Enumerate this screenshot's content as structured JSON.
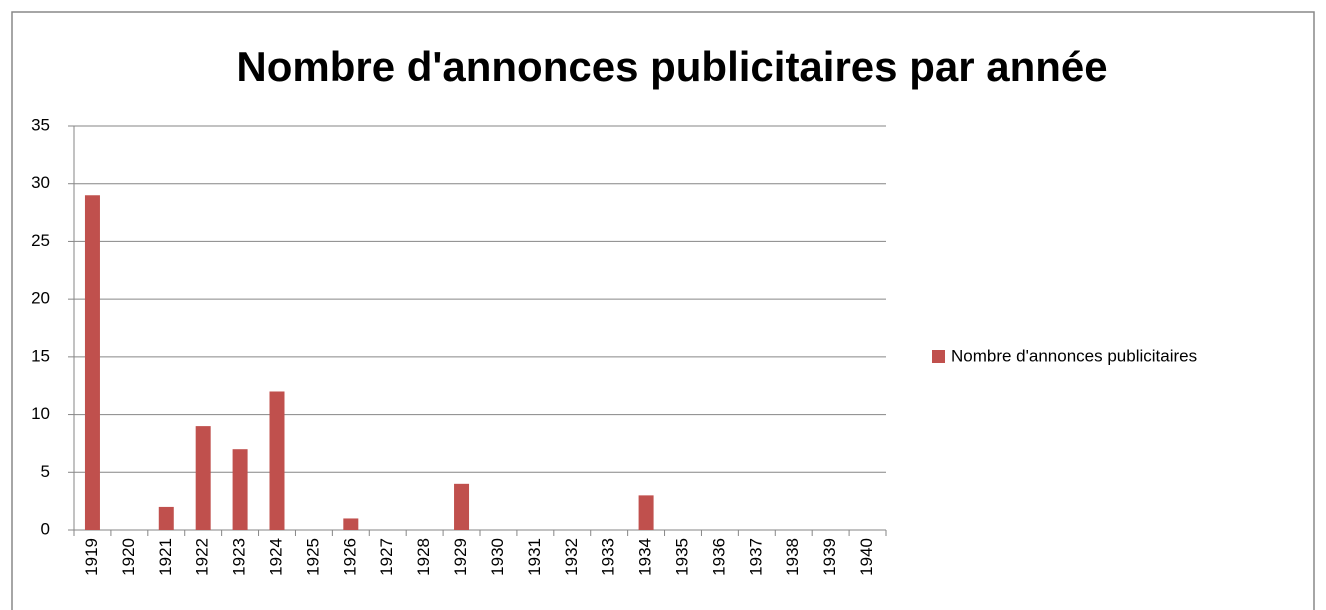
{
  "chart_data": {
    "type": "bar",
    "title": "Nombre d'annonces publicitaires par année",
    "categories": [
      "1919",
      "1920",
      "1921",
      "1922",
      "1923",
      "1924",
      "1925",
      "1926",
      "1927",
      "1928",
      "1929",
      "1930",
      "1931",
      "1932",
      "1933",
      "1934",
      "1935",
      "1936",
      "1937",
      "1938",
      "1939",
      "1940"
    ],
    "series": [
      {
        "name": "Nombre d'annonces publicitaires",
        "color": "#c0504d",
        "values": [
          29,
          0,
          2,
          9,
          7,
          12,
          0,
          1,
          0,
          0,
          4,
          0,
          0,
          0,
          0,
          3,
          0,
          0,
          0,
          0,
          0,
          0
        ]
      }
    ],
    "ylim": [
      0,
      35
    ],
    "yticks": [
      0,
      5,
      10,
      15,
      20,
      25,
      30,
      35
    ],
    "grid": true,
    "legend": "right"
  }
}
